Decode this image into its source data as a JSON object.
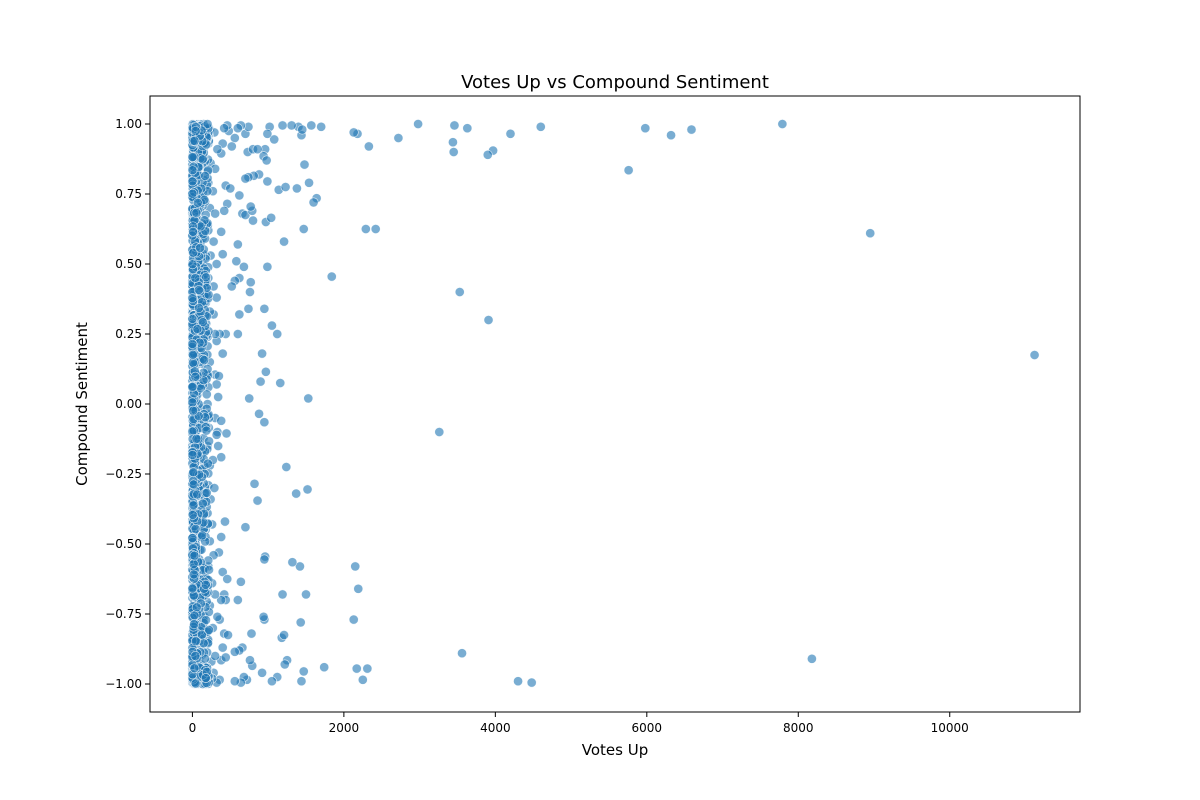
{
  "chart_data": {
    "type": "scatter",
    "title": "Votes Up vs Compound Sentiment",
    "xlabel": "Votes Up",
    "ylabel": "Compound Sentiment",
    "xlim": [
      -560,
      11720
    ],
    "ylim": [
      -1.1,
      1.1
    ],
    "x_ticks": [
      0,
      2000,
      4000,
      6000,
      8000,
      10000
    ],
    "x_tick_labels": [
      "0",
      "2000",
      "4000",
      "6000",
      "8000",
      "10000"
    ],
    "y_ticks": [
      -1.0,
      -0.75,
      -0.5,
      -0.25,
      0.0,
      0.25,
      0.5,
      0.75,
      1.0
    ],
    "y_tick_labels": [
      "−1.00",
      "−0.75",
      "−0.50",
      "−0.25",
      "0.00",
      "0.25",
      "0.50",
      "0.75",
      "1.00"
    ],
    "grid": false,
    "point_color": "#1f77b4",
    "point_opacity": 0.6,
    "series": [
      {
        "points": [
          [
            7790,
            1.0
          ],
          [
            8950,
            0.61
          ],
          [
            11120,
            0.175
          ],
          [
            8180,
            -0.91
          ],
          [
            5760,
            0.835
          ],
          [
            5980,
            0.985
          ],
          [
            6320,
            0.96
          ],
          [
            6590,
            0.98
          ],
          [
            4600,
            0.99
          ],
          [
            4200,
            0.965
          ],
          [
            3970,
            0.905
          ],
          [
            3900,
            0.89
          ],
          [
            3910,
            0.3
          ],
          [
            3530,
            0.4
          ],
          [
            3560,
            -0.89
          ],
          [
            3260,
            -0.1
          ],
          [
            4300,
            -0.99
          ],
          [
            4480,
            -0.995
          ],
          [
            3630,
            0.985
          ],
          [
            3460,
            0.995
          ],
          [
            3440,
            0.935
          ],
          [
            3450,
            0.9
          ],
          [
            2980,
            1.0
          ],
          [
            2720,
            0.95
          ],
          [
            2330,
            0.92
          ],
          [
            2180,
            0.965
          ],
          [
            2130,
            0.97
          ],
          [
            2290,
            0.625
          ],
          [
            2420,
            0.625
          ],
          [
            1840,
            0.455
          ],
          [
            2150,
            -0.58
          ],
          [
            2190,
            -0.66
          ],
          [
            2130,
            -0.77
          ],
          [
            2310,
            -0.945
          ],
          [
            2170,
            -0.945
          ],
          [
            2250,
            -0.985
          ],
          [
            1700,
            0.99
          ],
          [
            1570,
            0.995
          ],
          [
            1640,
            0.735
          ],
          [
            1600,
            0.72
          ],
          [
            1540,
            0.79
          ],
          [
            1480,
            0.855
          ],
          [
            1470,
            0.625
          ],
          [
            1530,
            0.02
          ],
          [
            1520,
            -0.305
          ],
          [
            1370,
            -0.32
          ],
          [
            1240,
            -0.225
          ],
          [
            1500,
            -0.68
          ],
          [
            1420,
            -0.58
          ],
          [
            1320,
            -0.565
          ],
          [
            1430,
            -0.78
          ],
          [
            1180,
            -0.835
          ],
          [
            1210,
            -0.825
          ],
          [
            1190,
            -0.68
          ],
          [
            1250,
            -0.915
          ],
          [
            1220,
            -0.93
          ],
          [
            1470,
            -0.955
          ],
          [
            1440,
            -0.99
          ],
          [
            1740,
            -0.94
          ],
          [
            1120,
            -0.975
          ],
          [
            1050,
            -0.99
          ],
          [
            1160,
            0.075
          ],
          [
            1120,
            0.25
          ],
          [
            1050,
            0.28
          ],
          [
            1210,
            0.58
          ],
          [
            1140,
            0.765
          ],
          [
            1230,
            0.775
          ],
          [
            1380,
            0.77
          ],
          [
            1440,
            0.96
          ],
          [
            1400,
            0.99
          ],
          [
            1450,
            0.98
          ],
          [
            1310,
            0.995
          ],
          [
            1190,
            0.995
          ],
          [
            1080,
            0.945
          ],
          [
            1020,
            0.99
          ],
          [
            990,
            0.965
          ],
          [
            960,
            0.91
          ],
          [
            940,
            0.885
          ],
          [
            980,
            0.87
          ],
          [
            990,
            0.795
          ],
          [
            880,
            0.82
          ],
          [
            810,
            0.815
          ],
          [
            970,
            0.65
          ],
          [
            1040,
            0.665
          ],
          [
            990,
            0.49
          ],
          [
            950,
            0.34
          ],
          [
            920,
            0.18
          ],
          [
            970,
            0.115
          ],
          [
            900,
            0.08
          ],
          [
            880,
            -0.035
          ],
          [
            950,
            -0.065
          ],
          [
            860,
            -0.345
          ],
          [
            820,
            -0.285
          ],
          [
            960,
            -0.545
          ],
          [
            950,
            -0.555
          ],
          [
            950,
            -0.77
          ],
          [
            940,
            -0.76
          ],
          [
            920,
            -0.96
          ],
          [
            780,
            -0.82
          ],
          [
            790,
            -0.935
          ],
          [
            760,
            -0.915
          ],
          [
            720,
            -0.985
          ],
          [
            680,
            -0.975
          ],
          [
            640,
            -0.995
          ],
          [
            560,
            -0.99
          ],
          [
            700,
            -0.44
          ],
          [
            640,
            -0.635
          ],
          [
            600,
            -0.7
          ],
          [
            660,
            -0.87
          ],
          [
            620,
            -0.88
          ],
          [
            560,
            -0.885
          ],
          [
            760,
            0.4
          ],
          [
            770,
            0.435
          ],
          [
            740,
            0.34
          ],
          [
            750,
            0.02
          ],
          [
            620,
            0.32
          ],
          [
            600,
            0.25
          ],
          [
            580,
            0.51
          ],
          [
            600,
            0.57
          ],
          [
            680,
            0.49
          ],
          [
            620,
            0.45
          ],
          [
            560,
            0.44
          ],
          [
            520,
            0.42
          ],
          [
            620,
            0.745
          ],
          [
            660,
            0.68
          ],
          [
            700,
            0.675
          ],
          [
            790,
            0.69
          ],
          [
            770,
            0.705
          ],
          [
            800,
            0.655
          ],
          [
            740,
            0.81
          ],
          [
            700,
            0.805
          ],
          [
            730,
            0.9
          ],
          [
            800,
            0.91
          ],
          [
            860,
            0.91
          ],
          [
            700,
            0.965
          ],
          [
            740,
            0.99
          ],
          [
            640,
            0.995
          ],
          [
            600,
            0.985
          ],
          [
            560,
            0.95
          ],
          [
            520,
            0.92
          ],
          [
            480,
            0.975
          ],
          [
            460,
            0.995
          ],
          [
            420,
            0.985
          ],
          [
            400,
            0.93
          ],
          [
            380,
            0.895
          ],
          [
            440,
            0.78
          ],
          [
            500,
            0.77
          ],
          [
            460,
            0.715
          ],
          [
            420,
            0.69
          ],
          [
            380,
            0.615
          ],
          [
            400,
            0.535
          ],
          [
            440,
            0.25
          ],
          [
            400,
            0.18
          ],
          [
            360,
            0.25
          ],
          [
            320,
            0.225
          ],
          [
            300,
            0.25
          ],
          [
            280,
            0.32
          ],
          [
            320,
            0.38
          ],
          [
            280,
            0.42
          ],
          [
            300,
            0.105
          ],
          [
            350,
            0.1
          ],
          [
            320,
            0.07
          ],
          [
            340,
            0.025
          ],
          [
            300,
            -0.05
          ],
          [
            330,
            -0.1
          ],
          [
            320,
            -0.11
          ],
          [
            380,
            -0.06
          ],
          [
            450,
            -0.105
          ],
          [
            340,
            -0.15
          ],
          [
            380,
            -0.19
          ],
          [
            430,
            -0.42
          ],
          [
            380,
            -0.475
          ],
          [
            350,
            -0.53
          ],
          [
            400,
            -0.6
          ],
          [
            460,
            -0.625
          ],
          [
            420,
            -0.68
          ],
          [
            440,
            -0.7
          ],
          [
            380,
            -0.7
          ],
          [
            360,
            -0.77
          ],
          [
            330,
            -0.76
          ],
          [
            420,
            -0.82
          ],
          [
            470,
            -0.825
          ],
          [
            400,
            -0.87
          ],
          [
            380,
            -0.915
          ],
          [
            440,
            -0.905
          ],
          [
            360,
            -0.985
          ],
          [
            320,
            -0.995
          ],
          [
            280,
            -0.96
          ],
          [
            250,
            -0.92
          ],
          [
            210,
            -0.85
          ],
          [
            230,
            -0.72
          ],
          [
            260,
            -0.64
          ],
          [
            210,
            -0.58
          ],
          [
            230,
            -0.49
          ],
          [
            200,
            -0.39
          ],
          [
            240,
            -0.34
          ],
          [
            210,
            -0.29
          ],
          [
            230,
            -0.22
          ],
          [
            200,
            -0.15
          ],
          [
            220,
            -0.05
          ],
          [
            200,
            0.0
          ],
          [
            210,
            0.06
          ],
          [
            230,
            0.15
          ],
          [
            200,
            0.24
          ],
          [
            230,
            0.33
          ],
          [
            210,
            0.45
          ],
          [
            240,
            0.53
          ],
          [
            210,
            0.62
          ],
          [
            230,
            0.7
          ],
          [
            210,
            0.79
          ],
          [
            240,
            0.86
          ],
          [
            210,
            0.93
          ],
          [
            230,
            0.98
          ],
          [
            270,
            0.76
          ],
          [
            300,
            0.68
          ],
          [
            280,
            0.58
          ],
          [
            320,
            0.5
          ],
          [
            290,
            0.97
          ],
          [
            330,
            0.91
          ],
          [
            300,
            0.84
          ],
          [
            270,
            -0.8
          ],
          [
            300,
            -0.68
          ],
          [
            280,
            -0.54
          ],
          [
            260,
            -0.43
          ],
          [
            290,
            -0.3
          ],
          [
            270,
            -0.2
          ],
          [
            260,
            -0.98
          ],
          [
            300,
            -0.9
          ]
        ]
      }
    ]
  }
}
